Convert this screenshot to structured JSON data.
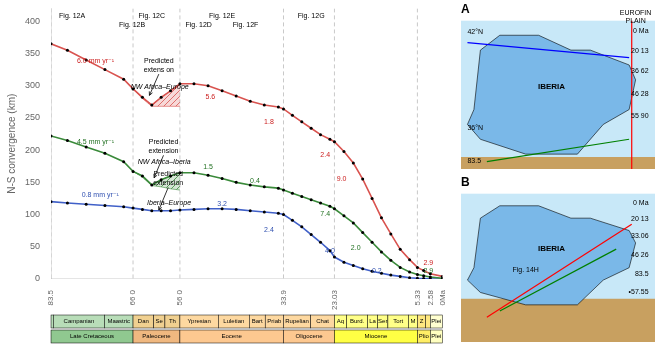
{
  "chart_data": [
    {
      "type": "line",
      "ylabel": "N-S convergence (km)",
      "x": [
        83.5,
        80,
        76,
        72,
        68,
        66,
        64,
        62,
        60,
        58,
        56,
        53,
        50,
        47,
        44,
        41,
        38,
        35,
        33.9,
        32,
        30,
        28,
        26,
        24,
        23.03,
        21,
        19,
        17,
        15,
        13,
        11,
        9,
        7,
        5.33,
        4,
        2.58,
        0
      ],
      "series": [
        {
          "color": "#d9534f",
          "marker": "circle",
          "values": [
            365,
            355,
            340,
            325,
            310,
            295,
            282,
            270,
            282,
            292,
            303,
            303,
            300,
            292,
            284,
            276,
            270,
            267,
            264,
            254,
            244,
            234,
            224,
            217,
            213,
            198,
            180,
            155,
            125,
            95,
            70,
            46,
            30,
            18,
            13,
            8,
            4
          ]
        },
        {
          "color": "#3a8a3a",
          "marker": "circle",
          "values": [
            222,
            215,
            205,
            195,
            182,
            167,
            160,
            146,
            154,
            160,
            165,
            165,
            161,
            156,
            150,
            146,
            143,
            141,
            138,
            133,
            128,
            123,
            118,
            113,
            109,
            98,
            87,
            72,
            57,
            42,
            29,
            18,
            11,
            7,
            5,
            3,
            1
          ]
        },
        {
          "color": "#4060c8",
          "marker": "circle",
          "values": [
            120,
            118,
            116,
            114,
            112,
            110,
            108,
            106,
            106,
            106,
            107,
            108,
            109,
            109,
            108,
            106,
            104,
            102,
            100,
            91,
            81,
            69,
            57,
            44,
            34,
            26,
            21,
            16,
            12,
            9,
            6,
            4,
            2,
            1,
            0.7,
            0.3,
            0
          ]
        }
      ],
      "xlim": [
        83.5,
        0
      ],
      "xticks": [
        83.5,
        {
          "value": 66.0,
          "label": "66 0"
        },
        {
          "value": 56.0,
          "label": "56 0"
        },
        33.9,
        23.03,
        5.33,
        2.58,
        {
          "value": 0,
          "label": "0Ma"
        }
      ],
      "ylim": [
        0,
        420
      ],
      "yticks": [
        0,
        50,
        100,
        150,
        200,
        250,
        300,
        350,
        400
      ],
      "grid": false,
      "vlines": {
        "color": "#bbbbbb",
        "x": [
          83.5,
          66.0,
          56.0,
          33.9,
          23.03,
          5.33
        ]
      },
      "bands": [
        {
          "color": "#d9534f",
          "x": [
            66,
            64,
            62,
            60,
            58,
            56
          ],
          "upper": [
            295,
            282,
            270,
            282,
            292,
            303
          ],
          "lower": [
            295,
            280,
            268,
            268,
            268,
            268
          ]
        },
        {
          "color": "#3a8a3a",
          "x": [
            66,
            64,
            62,
            60,
            58,
            56
          ],
          "upper": [
            167,
            160,
            146,
            154,
            160,
            165
          ],
          "lower": [
            167,
            158,
            145,
            143,
            140,
            138
          ]
        }
      ],
      "rate_labels": [
        {
          "color": "#cc2020",
          "labels": [
            {
              "text": "6.0 mm yr⁻¹",
              "x": 74,
              "y": 338
            },
            {
              "text": "5.6",
              "x": 49.5,
              "y": 283
            },
            {
              "text": "1.8",
              "x": 37,
              "y": 244
            },
            {
              "text": "2.4",
              "x": 25,
              "y": 192
            },
            {
              "text": "9.0",
              "x": 21.5,
              "y": 155
            },
            {
              "text": "2.9",
              "x": 3,
              "y": 25
            }
          ]
        },
        {
          "color": "#207020",
          "labels": [
            {
              "text": "4.5 mm yr⁻¹",
              "x": 74,
              "y": 213
            },
            {
              "text": "1.5",
              "x": 50,
              "y": 173
            },
            {
              "text": "0.4",
              "x": 40,
              "y": 152
            },
            {
              "text": "7.4",
              "x": 25,
              "y": 100
            },
            {
              "text": "2.0",
              "x": 18.5,
              "y": 48
            },
            {
              "text": "2.9",
              "x": 3,
              "y": 12
            }
          ]
        },
        {
          "color": "#3050b0",
          "labels": [
            {
              "text": "0.8 mm yr⁻¹",
              "x": 73,
              "y": 130
            },
            {
              "text": "3.2",
              "x": 47,
              "y": 116
            },
            {
              "text": "2.4",
              "x": 37,
              "y": 76
            },
            {
              "text": "4.0",
              "x": 24,
              "y": 43
            },
            {
              "text": "0.2",
              "x": 14,
              "y": 12
            }
          ]
        }
      ],
      "curve_labels": [
        {
          "text": "NW Africa–Europe",
          "x": 66.5,
          "y": 298
        },
        {
          "text": "NW Africa–Iberia",
          "x": 65,
          "y": 182
        },
        {
          "text": "Iberia–Europe",
          "x": 63,
          "y": 118
        }
      ],
      "annotations": [
        {
          "text": "Predicted\nextens on",
          "x": 60.5,
          "y": 318,
          "arrow_x": 62.5,
          "arrow_y": 285
        },
        {
          "text": "Predicted\nextension",
          "x": 59.5,
          "y": 192,
          "arrow_x": 61.5,
          "arrow_y": 157
        },
        {
          "text": "Predicted\nextension",
          "x": 58.5,
          "y": 142,
          "arrow_x": 60.5,
          "arrow_y": 107
        }
      ],
      "fig_labels": [
        {
          "text": "Fig. 12A",
          "x": 79,
          "y": 413
        },
        {
          "text": "Fig. 12B",
          "x": 66.2,
          "y": 413
        },
        {
          "text": "Fig. 12C",
          "x": 62,
          "y": 413
        },
        {
          "text": "Fig. 12D",
          "x": 52,
          "y": 413
        },
        {
          "text": "Fig. 12E",
          "x": 47,
          "y": 413
        },
        {
          "text": "Fig. 12F",
          "x": 42,
          "y": 413
        },
        {
          "text": "Fig. 12G",
          "x": 28,
          "y": 413
        }
      ],
      "stages": [
        {
          "label": null,
          "start": 83.5,
          "end": 83.0,
          "color": "#b8ddb8"
        },
        {
          "label": "Campanian",
          "start": 83.0,
          "end": 72.1,
          "color": "#b8ddb8"
        },
        {
          "label": "Maastric",
          "start": 72.1,
          "end": 66.0,
          "color": "#b8ddb8"
        },
        {
          "label": "Dan",
          "start": 66.0,
          "end": 61.6,
          "color": "#f0d090"
        },
        {
          "label": "Se",
          "start": 61.6,
          "end": 59.2,
          "color": "#f0d090"
        },
        {
          "label": "Th",
          "start": 59.2,
          "end": 56.0,
          "color": "#f0d090"
        },
        {
          "label": "Ypresian",
          "start": 56.0,
          "end": 47.8,
          "color": "#fdd8a0"
        },
        {
          "label": "Luletian",
          "start": 47.8,
          "end": 41.2,
          "color": "#fdd8a0"
        },
        {
          "label": "Bart",
          "start": 41.2,
          "end": 37.8,
          "color": "#fdd8a0"
        },
        {
          "label": "Priab",
          "start": 37.8,
          "end": 33.9,
          "color": "#fdd8a0"
        },
        {
          "label": "Rupelian",
          "start": 33.9,
          "end": 28.1,
          "color": "#fdd8a0"
        },
        {
          "label": "Chat",
          "start": 28.1,
          "end": 23.03,
          "color": "#fdd8a0"
        },
        {
          "label": "Aq",
          "start": 23.03,
          "end": 20.44,
          "color": "#ffff88"
        },
        {
          "label": "Burd.",
          "start": 20.44,
          "end": 15.97,
          "color": "#ffff88"
        },
        {
          "label": "La",
          "start": 15.97,
          "end": 13.82,
          "color": "#ffff88"
        },
        {
          "label": "Ser",
          "start": 13.82,
          "end": 11.63,
          "color": "#ffff88"
        },
        {
          "label": "Tort",
          "start": 11.63,
          "end": 7.25,
          "color": "#ffff88"
        },
        {
          "label": "M",
          "start": 7.25,
          "end": 5.33,
          "color": "#ffff88"
        },
        {
          "label": "Z",
          "start": 5.33,
          "end": 3.6,
          "color": "#ffe880"
        },
        {
          "label": null,
          "start": 3.6,
          "end": 2.58,
          "color": "#ffe880"
        },
        {
          "label": "Plei",
          "start": 2.58,
          "end": 0.0,
          "color": "#ffffd0"
        }
      ],
      "epochs": [
        {
          "label": "Late Cretaceous",
          "start": 83.5,
          "end": 66.0,
          "color": "#90c890"
        },
        {
          "label": "Paleocene",
          "start": 66.0,
          "end": 56.0,
          "color": "#f0b880"
        },
        {
          "label": "Eocene",
          "start": 56.0,
          "end": 33.9,
          "color": "#fdc890"
        },
        {
          "label": "Oligocene",
          "start": 33.9,
          "end": 23.03,
          "color": "#fdc890"
        },
        {
          "label": "Miocene",
          "start": 23.03,
          "end": 5.33,
          "color": "#ffff44"
        },
        {
          "label": "Plio",
          "start": 5.33,
          "end": 2.58,
          "color": "#ffee66"
        },
        {
          "label": "Plei",
          "start": 2.58,
          "end": 0.0,
          "color": "#ffffc0"
        }
      ]
    },
    {
      "type": "map",
      "title": "A",
      "xlim": [
        -10,
        5
      ],
      "ylim": [
        35,
        45
      ],
      "tick_labels": false,
      "grid": false,
      "color": "#c8e8f8",
      "areas": [
        {
          "color": "#c8a060",
          "x": [
            -10,
            5,
            5,
            -10
          ],
          "y": [
            35,
            35,
            35.8,
            35.8
          ]
        },
        {
          "color": "#7ab8e8",
          "edge_color": "black",
          "x": [
            -9,
            -8.5,
            -7,
            -4,
            -1.5,
            0,
            3,
            3.5,
            3,
            1,
            -1,
            -5,
            -8.5,
            -9.5,
            -9
          ],
          "y": [
            39,
            43,
            44,
            44,
            43,
            43,
            42,
            41,
            39,
            38,
            36,
            36,
            37,
            38,
            39
          ]
        }
      ],
      "lines": [
        {
          "color": "red",
          "x": [
            3.2,
            3.2
          ],
          "y": [
            35,
            45
          ]
        },
        {
          "color": "green",
          "x": [
            -8,
            3
          ],
          "y": [
            35.5,
            37
          ]
        },
        {
          "color": "blue",
          "x": [
            -9.5,
            3
          ],
          "y": [
            43.5,
            42.5
          ]
        }
      ],
      "place_labels": [
        {
          "text": "IBERIA",
          "x": -3,
          "y": 40.5
        }
      ],
      "time_labels": [
        {
          "text": "0 Ma",
          "x": 4.5,
          "y": 44.5
        },
        {
          "text": "20 13",
          "x": 4.5,
          "y": 43.2
        },
        {
          "text": "36 62",
          "x": 4.5,
          "y": 41.8
        },
        {
          "text": "46 28",
          "x": 4.5,
          "y": 40.3
        },
        {
          "text": "55 90",
          "x": 4.5,
          "y": 38.8
        }
      ],
      "edge_labels": [
        {
          "text": "83.5",
          "x": -9.5,
          "y": 35.3
        },
        {
          "text": "42°N",
          "x": -9.5,
          "y": 44.0
        },
        {
          "text": "36°N",
          "x": -9.5,
          "y": 37.5
        }
      ],
      "captions": [
        {
          "text": "EUROFIN\nPLAIN",
          "x": 3.5,
          "y": 44.7
        }
      ]
    },
    {
      "type": "map",
      "title": "B",
      "xlim": [
        -10,
        5
      ],
      "ylim": [
        33,
        45
      ],
      "tick_labels": false,
      "grid": false,
      "color": "#c8e8f8",
      "areas": [
        {
          "color": "#c8a060",
          "x": [
            -10,
            5,
            5,
            -10
          ],
          "y": [
            33,
            33,
            36.5,
            36.5
          ]
        },
        {
          "color": "#7ab8e8",
          "edge_color": "black",
          "x": [
            -9,
            -8.5,
            -7,
            -4,
            -1.5,
            0,
            3,
            3.5,
            3,
            1,
            -1,
            -5,
            -8.5,
            -9.5,
            -9
          ],
          "y": [
            39,
            43,
            44,
            44,
            43,
            43,
            42,
            41,
            39,
            38,
            36,
            36,
            37,
            38,
            39
          ]
        }
      ],
      "lines": [
        {
          "color": "red",
          "x": [
            -8,
            3.2
          ],
          "y": [
            35.0,
            42.5
          ]
        },
        {
          "color": "green",
          "x": [
            -7,
            2
          ],
          "y": [
            35.5,
            40.5
          ]
        }
      ],
      "place_labels": [
        {
          "text": "IBERIA",
          "x": -3,
          "y": 40.5
        }
      ],
      "time_labels": [
        {
          "text": "0 Ma",
          "x": 4.5,
          "y": 44.5
        },
        {
          "text": "20 13",
          "x": 4.5,
          "y": 43.2
        },
        {
          "text": "33.06",
          "x": 4.5,
          "y": 41.8
        },
        {
          "text": "46 26",
          "x": 4.5,
          "y": 40.3
        },
        {
          "text": "83.5",
          "x": 4.5,
          "y": 38.8
        },
        {
          "text": "•57.55",
          "x": 4.5,
          "y": 37.3
        }
      ],
      "captions": [
        {
          "text": "Fig. 14H",
          "x": -5,
          "y": 38.5
        }
      ]
    }
  ]
}
